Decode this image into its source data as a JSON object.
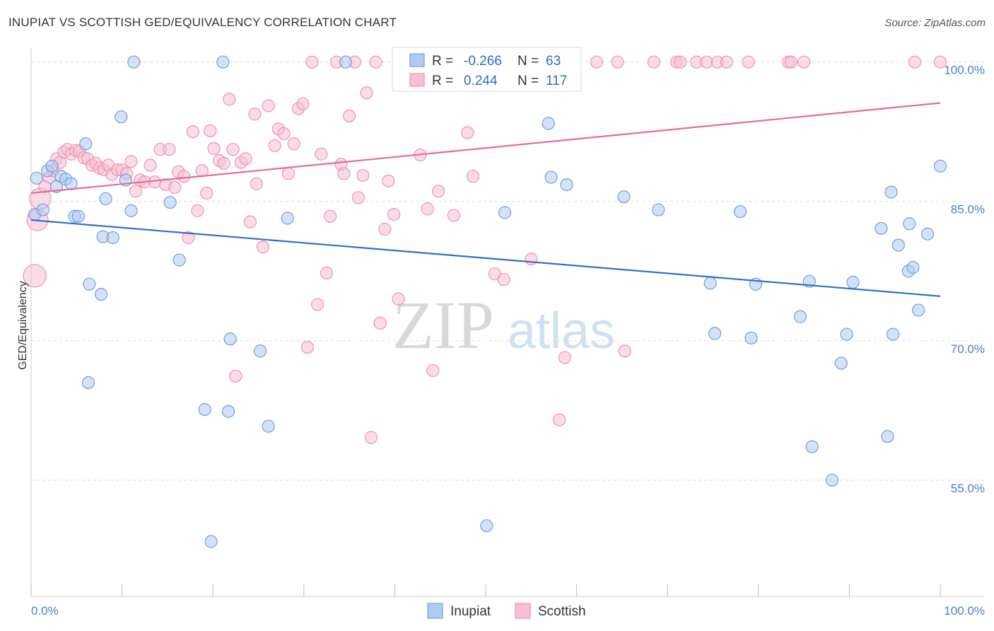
{
  "title": "INUPIAT VS SCOTTISH GED/EQUIVALENCY CORRELATION CHART",
  "source": "Source: ZipAtlas.com",
  "watermark": {
    "zip": "ZIP",
    "atlas": "atlas"
  },
  "legend": {
    "r_label": "R =",
    "n_label": "N =",
    "rows": [
      {
        "series": "Inupiat",
        "r": "-0.266",
        "n": "63",
        "color": "#6fa0e0"
      },
      {
        "series": "Scottish",
        "r": "0.244",
        "n": "117",
        "color": "#f08db0"
      }
    ]
  },
  "colors": {
    "inupiat_fill": "#aecbf1",
    "inupiat_stroke": "#6fa0e0",
    "inupiat_line": "#2f6fd0",
    "scottish_fill": "#f8c0d2",
    "scottish_stroke": "#ee93b2",
    "scottish_line": "#e76a96",
    "tick_text": "#4a7fcf",
    "grid": "#dcdcdc"
  },
  "chart_data": {
    "type": "scatter",
    "title": "INUPIAT VS SCOTTISH GED/EQUIVALENCY CORRELATION CHART",
    "xlabel": "",
    "ylabel": "GED/Equivalency",
    "xlim": [
      0,
      100
    ],
    "ylim": [
      42.5,
      101.5
    ],
    "x_tick_labels": [
      "0.0%",
      "100.0%"
    ],
    "y_ticks": [
      100,
      85,
      70,
      55
    ],
    "y_tick_labels": [
      "100.0%",
      "85.0%",
      "70.0%",
      "55.0%"
    ],
    "grid": true,
    "legend_placement": "top-center",
    "series": [
      {
        "name": "Inupiat",
        "trend": {
          "x": [
            0,
            100
          ],
          "y": [
            83.0,
            74.8
          ]
        },
        "points": [
          [
            0.4,
            83.6
          ],
          [
            0.6,
            87.5
          ],
          [
            1.3,
            84.1
          ],
          [
            1.8,
            88.3
          ],
          [
            2.3,
            88.8
          ],
          [
            2.8,
            86.6
          ],
          [
            3.3,
            87.7
          ],
          [
            3.8,
            87.4
          ],
          [
            4.4,
            86.9
          ],
          [
            4.8,
            83.4
          ],
          [
            5.2,
            83.4
          ],
          [
            6.0,
            91.2
          ],
          [
            6.4,
            76.1
          ],
          [
            6.3,
            65.5
          ],
          [
            7.7,
            75.0
          ],
          [
            7.9,
            81.2
          ],
          [
            8.2,
            85.3
          ],
          [
            9.0,
            81.1
          ],
          [
            9.9,
            94.1
          ],
          [
            10.4,
            87.3
          ],
          [
            11.0,
            84.0
          ],
          [
            11.3,
            100.0
          ],
          [
            15.3,
            84.9
          ],
          [
            16.3,
            78.7
          ],
          [
            19.1,
            62.6
          ],
          [
            19.8,
            48.4
          ],
          [
            21.1,
            100.0
          ],
          [
            21.7,
            62.4
          ],
          [
            21.9,
            70.2
          ],
          [
            25.2,
            68.9
          ],
          [
            26.1,
            60.8
          ],
          [
            28.2,
            83.2
          ],
          [
            34.6,
            100.0
          ],
          [
            50.1,
            50.1
          ],
          [
            52.1,
            83.8
          ],
          [
            56.9,
            93.4
          ],
          [
            57.2,
            87.6
          ],
          [
            58.9,
            86.8
          ],
          [
            59.5,
            98.7
          ],
          [
            65.2,
            85.5
          ],
          [
            69.0,
            84.1
          ],
          [
            74.7,
            76.2
          ],
          [
            75.2,
            70.8
          ],
          [
            78.0,
            83.9
          ],
          [
            79.7,
            76.1
          ],
          [
            79.2,
            70.3
          ],
          [
            84.6,
            72.6
          ],
          [
            85.6,
            76.4
          ],
          [
            85.9,
            58.6
          ],
          [
            88.1,
            55.0
          ],
          [
            89.1,
            67.6
          ],
          [
            89.7,
            70.7
          ],
          [
            90.4,
            76.3
          ],
          [
            93.5,
            82.1
          ],
          [
            94.2,
            59.7
          ],
          [
            94.6,
            86.0
          ],
          [
            94.8,
            70.7
          ],
          [
            95.4,
            80.3
          ],
          [
            96.5,
            77.5
          ],
          [
            96.6,
            82.6
          ],
          [
            97.0,
            77.9
          ],
          [
            97.6,
            73.3
          ],
          [
            98.6,
            81.5
          ],
          [
            100.0,
            88.8
          ]
        ]
      },
      {
        "name": "Scottish",
        "trend": {
          "x": [
            0,
            100
          ],
          "y": [
            85.9,
            95.6
          ]
        },
        "points": [
          [
            0.4,
            77.0
          ],
          [
            0.7,
            83.0
          ],
          [
            1.0,
            85.3
          ],
          [
            1.5,
            86.6
          ],
          [
            2.0,
            87.6
          ],
          [
            2.4,
            88.3
          ],
          [
            2.8,
            89.6
          ],
          [
            3.2,
            89.2
          ],
          [
            3.6,
            90.3
          ],
          [
            4.0,
            90.6
          ],
          [
            4.4,
            90.1
          ],
          [
            4.9,
            90.5
          ],
          [
            5.3,
            90.4
          ],
          [
            5.8,
            89.7
          ],
          [
            6.2,
            89.6
          ],
          [
            6.7,
            88.9
          ],
          [
            7.1,
            89.1
          ],
          [
            7.5,
            88.6
          ],
          [
            8.0,
            88.4
          ],
          [
            8.5,
            88.9
          ],
          [
            8.9,
            87.9
          ],
          [
            9.5,
            88.4
          ],
          [
            10.0,
            88.4
          ],
          [
            10.5,
            88.0
          ],
          [
            11.0,
            89.3
          ],
          [
            11.5,
            86.1
          ],
          [
            12.0,
            87.3
          ],
          [
            12.5,
            87.1
          ],
          [
            13.1,
            88.9
          ],
          [
            13.6,
            87.1
          ],
          [
            14.2,
            90.6
          ],
          [
            14.8,
            86.8
          ],
          [
            15.2,
            90.6
          ],
          [
            15.8,
            86.5
          ],
          [
            16.2,
            88.2
          ],
          [
            16.8,
            87.7
          ],
          [
            17.3,
            81.1
          ],
          [
            17.8,
            92.5
          ],
          [
            18.3,
            84.0
          ],
          [
            18.8,
            88.3
          ],
          [
            19.3,
            85.9
          ],
          [
            19.7,
            92.6
          ],
          [
            20.1,
            90.7
          ],
          [
            20.7,
            89.4
          ],
          [
            21.2,
            89.1
          ],
          [
            21.8,
            96.0
          ],
          [
            22.2,
            90.6
          ],
          [
            22.5,
            66.2
          ],
          [
            23.1,
            89.2
          ],
          [
            23.6,
            89.6
          ],
          [
            24.1,
            82.8
          ],
          [
            24.6,
            94.4
          ],
          [
            24.8,
            86.9
          ],
          [
            25.5,
            80.1
          ],
          [
            26.1,
            95.3
          ],
          [
            26.8,
            91.0
          ],
          [
            27.2,
            92.8
          ],
          [
            27.8,
            92.3
          ],
          [
            28.3,
            88.0
          ],
          [
            28.9,
            91.2
          ],
          [
            29.4,
            95.0
          ],
          [
            29.9,
            95.5
          ],
          [
            30.4,
            69.3
          ],
          [
            30.9,
            100.0
          ],
          [
            31.5,
            73.9
          ],
          [
            31.9,
            90.1
          ],
          [
            32.5,
            77.3
          ],
          [
            32.9,
            83.4
          ],
          [
            33.6,
            100.0
          ],
          [
            34.1,
            89.0
          ],
          [
            34.4,
            88.0
          ],
          [
            35.0,
            94.2
          ],
          [
            35.6,
            100.0
          ],
          [
            36.0,
            85.4
          ],
          [
            36.5,
            87.8
          ],
          [
            36.9,
            96.7
          ],
          [
            37.4,
            59.6
          ],
          [
            37.9,
            100.0
          ],
          [
            38.4,
            71.9
          ],
          [
            38.9,
            82.0
          ],
          [
            39.3,
            87.2
          ],
          [
            39.9,
            83.6
          ],
          [
            40.4,
            74.5
          ],
          [
            41.0,
            100.0
          ],
          [
            42.4,
            100.0
          ],
          [
            42.8,
            90.0
          ],
          [
            43.6,
            84.2
          ],
          [
            44.2,
            66.8
          ],
          [
            44.8,
            86.1
          ],
          [
            45.5,
            100.0
          ],
          [
            46.5,
            83.5
          ],
          [
            48.0,
            92.4
          ],
          [
            48.6,
            87.7
          ],
          [
            51.0,
            77.2
          ],
          [
            52.0,
            76.6
          ],
          [
            53.3,
            98.5
          ],
          [
            55.0,
            78.8
          ],
          [
            57.5,
            100.0
          ],
          [
            58.1,
            61.5
          ],
          [
            58.7,
            68.2
          ],
          [
            59.0,
            100.0
          ],
          [
            62.2,
            100.0
          ],
          [
            64.5,
            100.0
          ],
          [
            65.3,
            68.9
          ],
          [
            68.5,
            100.0
          ],
          [
            71.0,
            100.0
          ],
          [
            71.4,
            100.0
          ],
          [
            73.2,
            100.0
          ],
          [
            74.3,
            100.0
          ],
          [
            75.5,
            100.0
          ],
          [
            76.5,
            100.0
          ],
          [
            78.9,
            100.0
          ],
          [
            83.3,
            100.0
          ],
          [
            83.6,
            100.0
          ],
          [
            85.0,
            100.0
          ],
          [
            97.2,
            100.0
          ],
          [
            100.0,
            100.0
          ]
        ]
      }
    ]
  }
}
